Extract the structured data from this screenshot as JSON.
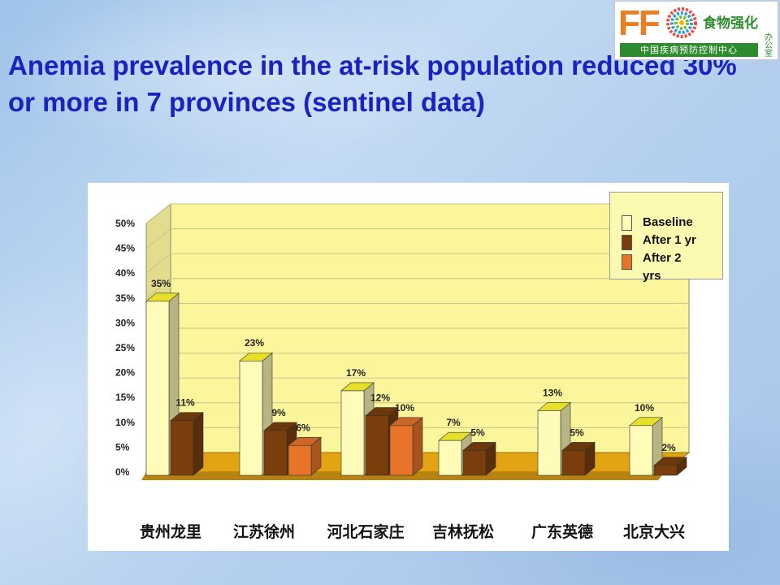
{
  "slide": {
    "title": "Anemia prevalence in the at-risk population reduced 30% or more  in 7 provinces (sentinel data)"
  },
  "logo": {
    "mark": "FF",
    "name_cn": "食物强化",
    "org_cn": "中国疾病预防控制中心",
    "office_cn": "办公室",
    "icon": "color-wheel-icon"
  },
  "chart_data": {
    "type": "bar",
    "categories": [
      "贵州龙里",
      "江苏徐州",
      "河北石家庄",
      "吉林抚松",
      "广东英德",
      "北京大兴"
    ],
    "series": [
      {
        "name": "Baseline",
        "values": [
          35,
          23,
          17,
          7,
          13,
          10
        ],
        "labels": [
          "35%",
          "23%",
          "17%",
          "7%",
          "13%",
          "10%"
        ]
      },
      {
        "name": "After 1 yr",
        "values": [
          11,
          9,
          12,
          5,
          5,
          2
        ],
        "labels": [
          "11%",
          "9%",
          "12%",
          "5%",
          "5%",
          "2%"
        ]
      },
      {
        "name": "After 2 yrs",
        "values": [
          null,
          6,
          10,
          null,
          null,
          null
        ],
        "labels": [
          "",
          "6%",
          "10%",
          "",
          "",
          ""
        ]
      }
    ],
    "y_ticks": [
      "0%",
      "5%",
      "10%",
      "15%",
      "20%",
      "25%",
      "30%",
      "35%",
      "40%",
      "45%",
      "50%"
    ],
    "ylim": [
      0,
      50
    ],
    "grid": true,
    "legend_position": "top-right",
    "legend": [
      {
        "line1": "Baseline",
        "line2": ""
      },
      {
        "line1": "After 1 yr",
        "line2": ""
      },
      {
        "line1": "After 2",
        "line2": "yrs"
      }
    ],
    "colors": {
      "baseline": "#fffbb8",
      "after1": "#7a3e0c",
      "after2": "#e8742a",
      "wall": "#fbf59c",
      "floor": "#e3a414"
    }
  }
}
